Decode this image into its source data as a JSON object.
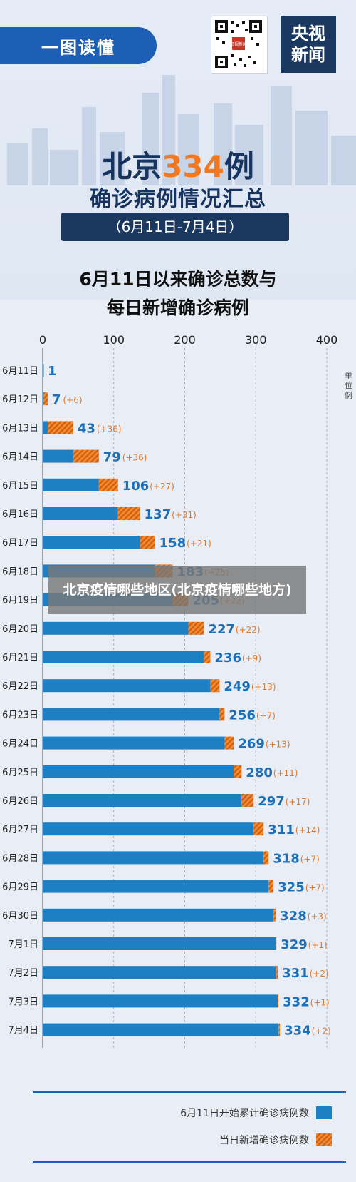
{
  "header": {
    "ribbon_label": "一图读懂",
    "brand_line1": "央视",
    "brand_line2": "新闻",
    "qr_label": "央视新闻"
  },
  "title": {
    "prefix": "北京",
    "number": "334",
    "suffix": "例",
    "subtitle": "确诊病例情况汇总",
    "date_range": "（6月11日-7月4日）"
  },
  "chart_heading": {
    "line1": "6月11日以来确诊总数与",
    "line2": "每日新增确诊病例"
  },
  "overlay_text": "北京疫情哪些地区(北京疫情哪些地方)",
  "legend": {
    "cumulative": "6月11日开始累计确诊病例数",
    "daily": "当日新增确诊病例数"
  },
  "colors": {
    "cumulative": "#1d7fc4",
    "daily": "#f08a2c",
    "label_blue": "#1d6fb8",
    "label_orange": "#e07a2a"
  },
  "chart_data": {
    "type": "bar",
    "orientation": "horizontal",
    "stacked": true,
    "unit_label": "单位例",
    "xlim": [
      0,
      400
    ],
    "xticks": [
      0,
      100,
      200,
      300,
      400
    ],
    "categories": [
      "6月11日",
      "6月12日",
      "6月13日",
      "6月14日",
      "6月15日",
      "6月16日",
      "6月17日",
      "6月18日",
      "6月19日",
      "6月20日",
      "6月21日",
      "6月22日",
      "6月23日",
      "6月24日",
      "6月25日",
      "6月26日",
      "6月27日",
      "6月28日",
      "6月29日",
      "6月30日",
      "7月1日",
      "7月2日",
      "7月3日",
      "7月4日"
    ],
    "totals": [
      1,
      7,
      43,
      79,
      106,
      137,
      158,
      183,
      205,
      227,
      236,
      249,
      256,
      269,
      280,
      297,
      311,
      318,
      325,
      328,
      329,
      331,
      332,
      334
    ],
    "increments_labels": [
      "",
      "(+6)",
      "(+36)",
      "(+36)",
      "(+27)",
      "(+31)",
      "(+21)",
      "(+25)",
      "(+22)",
      "(+22)",
      "(+9)",
      "(+13)",
      "(+7)",
      "(+13)",
      "(+11)",
      "(+17)",
      "(+14)",
      "(+7)",
      "(+7)",
      "(+3)",
      "(+1)",
      "(+2)",
      "(+1)",
      "(+2)"
    ],
    "series": [
      {
        "name": "6月11日开始累计确诊病例数",
        "values": [
          1,
          1,
          7,
          43,
          79,
          106,
          137,
          158,
          183,
          205,
          227,
          236,
          249,
          256,
          269,
          280,
          297,
          311,
          318,
          325,
          328,
          329,
          331,
          332
        ]
      },
      {
        "name": "当日新增确诊病例数",
        "values": [
          0,
          6,
          36,
          36,
          27,
          31,
          21,
          25,
          22,
          22,
          9,
          13,
          7,
          13,
          11,
          17,
          14,
          7,
          7,
          3,
          1,
          2,
          1,
          2
        ]
      }
    ]
  }
}
